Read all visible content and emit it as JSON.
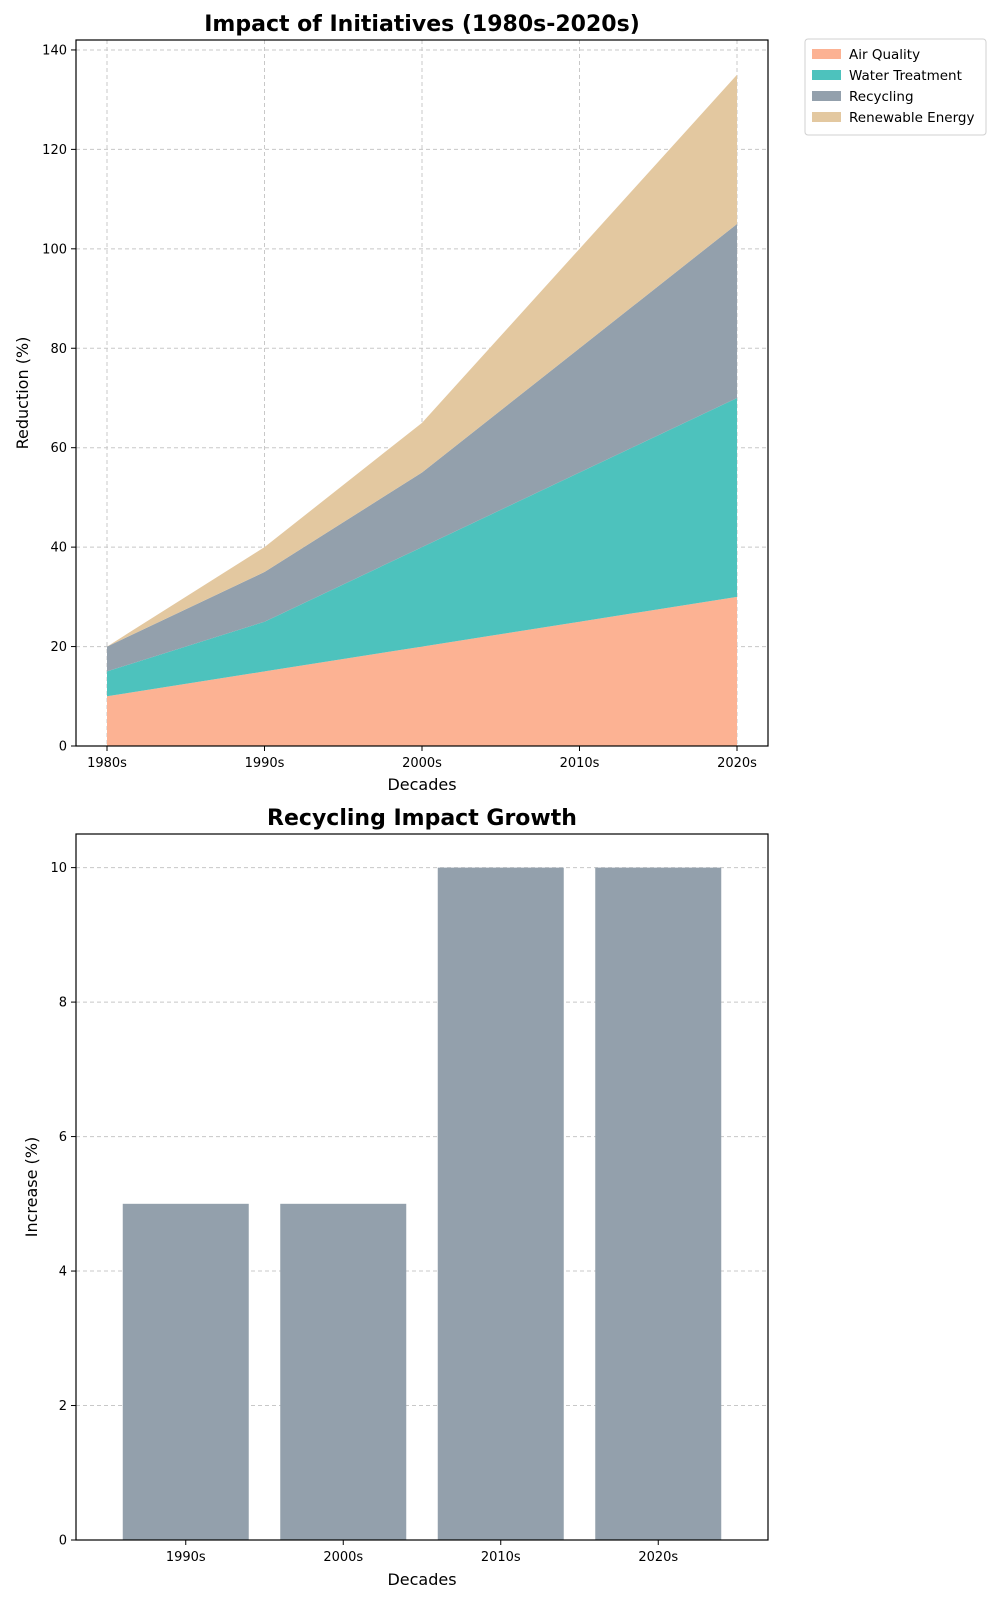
{
  "chart_data": [
    {
      "type": "area",
      "stacked": true,
      "title": "Impact of Initiatives (1980s-2020s)",
      "xlabel": "Decades",
      "ylabel": "Reduction (%)",
      "categories": [
        "1980s",
        "1990s",
        "2000s",
        "2010s",
        "2020s"
      ],
      "ylim": [
        0,
        142
      ],
      "yticks": [
        0,
        20,
        40,
        60,
        80,
        100,
        120,
        140
      ],
      "grid": true,
      "legend_position": "outside top-right",
      "series": [
        {
          "name": "Air Quality",
          "values": [
            10,
            15,
            20,
            25,
            30
          ],
          "color": "#FCB293"
        },
        {
          "name": "Water Treatment",
          "values": [
            5,
            10,
            20,
            30,
            40
          ],
          "color": "#4DC2BD"
        },
        {
          "name": "Recycling",
          "values": [
            5,
            10,
            15,
            25,
            35
          ],
          "color": "#93A0AC"
        },
        {
          "name": "Renewable Energy",
          "values": [
            0,
            5,
            10,
            20,
            30
          ],
          "color": "#E3C8A0"
        }
      ]
    },
    {
      "type": "bar",
      "title": "Recycling Impact Growth",
      "xlabel": "Decades",
      "ylabel": "Increase (%)",
      "categories": [
        "1990s",
        "2000s",
        "2010s",
        "2020s"
      ],
      "values": [
        5,
        5,
        10,
        10
      ],
      "ylim": [
        0,
        10.5
      ],
      "yticks": [
        0,
        2,
        4,
        6,
        8,
        10
      ],
      "grid": true,
      "color": "#93A0AC"
    }
  ]
}
